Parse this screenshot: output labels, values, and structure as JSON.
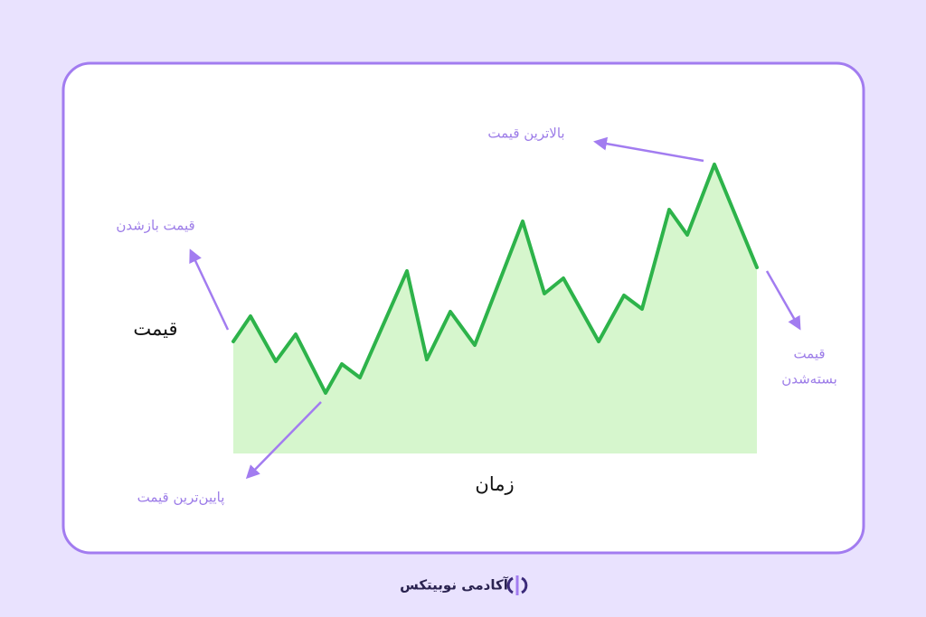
{
  "annotations": {
    "open_price": "قیمت بازشدن",
    "high_price": "بالاترین قیمت",
    "low_price": "پایین‌ترین قیمت",
    "close_price": [
      "قیمت",
      "بسته‌شدن"
    ]
  },
  "axes": {
    "y_label": "قیمت",
    "x_label": "زمان"
  },
  "footer": {
    "brand": "آکادمی نوبیتکس"
  }
}
